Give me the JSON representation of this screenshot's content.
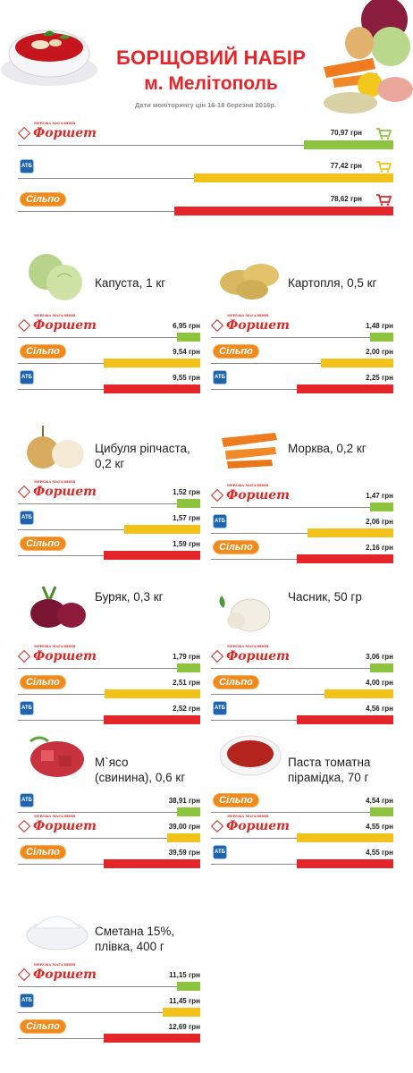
{
  "header": {
    "title": "БОРЩОВИЙ НАБІР",
    "city": "м. Мелітополь",
    "dates": "Дати моніторингу цін 16-18 березня 2016р."
  },
  "colors": {
    "green": "#8cc43f",
    "yellow": "#f2c21b",
    "red": "#e4262b",
    "brand": "#e4262b"
  },
  "stores": {
    "fora": {
      "name": "Форшет",
      "tagline": "МЕРЕЖА МАГАЗИНІВ",
      "icon": "fora-logo"
    },
    "atb": {
      "name": "АТБ",
      "icon": "atb-logo"
    },
    "silpo": {
      "name": "Сільпо",
      "icon": "silpo-logo"
    }
  },
  "chart_data": [
    {
      "type": "bar",
      "title": "БОРЩОВИЙ НАБІР",
      "categories": [
        "Форшет",
        "АТБ",
        "Сільпо"
      ],
      "values": [
        70.97,
        77.42,
        78.62
      ],
      "labels": [
        "70,97 грн",
        "77,42 грн",
        "78,62 грн"
      ],
      "colors": [
        "green",
        "yellow",
        "red"
      ],
      "icon": "basket-icon"
    },
    {
      "type": "bar",
      "title": "Капуста, 1 кг",
      "categories": [
        "Форшет",
        "Сільпо",
        "АТБ"
      ],
      "values": [
        6.95,
        9.54,
        9.55
      ],
      "labels": [
        "6,95 грн",
        "9,54 грн",
        "9,55 грн"
      ]
    },
    {
      "type": "bar",
      "title": "Картопля, 0,5 кг",
      "categories": [
        "Форшет",
        "Сільпо",
        "АТБ"
      ],
      "values": [
        1.48,
        2.0,
        2.25
      ],
      "labels": [
        "1,48 грн",
        "2,00 грн",
        "2,25 грн"
      ]
    },
    {
      "type": "bar",
      "title": "Цибуля ріпчаста, 0,2 кг",
      "categories": [
        "Форшет",
        "АТБ",
        "Сільпо"
      ],
      "values": [
        1.52,
        1.57,
        1.59
      ],
      "labels": [
        "1,52 грн",
        "1,57 грн",
        "1,59 грн"
      ]
    },
    {
      "type": "bar",
      "title": "Морква, 0,2 кг",
      "categories": [
        "Форшет",
        "АТБ",
        "Сільпо"
      ],
      "values": [
        1.47,
        2.06,
        2.16
      ],
      "labels": [
        "1,47 грн",
        "2,06 грн",
        "2,16 грн"
      ]
    },
    {
      "type": "bar",
      "title": "Буряк, 0,3 кг",
      "categories": [
        "Форшет",
        "Сільпо",
        "АТБ"
      ],
      "values": [
        1.79,
        2.51,
        2.52
      ],
      "labels": [
        "1,79 грн",
        "2,51 грн",
        "2,52 грн"
      ]
    },
    {
      "type": "bar",
      "title": "Часник, 50 гр",
      "categories": [
        "Форшет",
        "Сільпо",
        "АТБ"
      ],
      "values": [
        3.06,
        4.0,
        4.56
      ],
      "labels": [
        "3,06 грн",
        "4,00 грн",
        "4,56 грн"
      ]
    },
    {
      "type": "bar",
      "title": "М`ясо (свинина), 0,6 кг",
      "categories": [
        "АТБ",
        "Форшет",
        "Сільпо"
      ],
      "values": [
        38.91,
        39.0,
        39.59
      ],
      "labels": [
        "38,91 грн",
        "39,00 грн",
        "39,59 грн"
      ]
    },
    {
      "type": "bar",
      "title": "Паста томатна пірамідка, 70 г",
      "categories": [
        "Сільпо",
        "Форшет",
        "АТБ"
      ],
      "values": [
        4.54,
        4.55,
        4.55
      ],
      "labels": [
        "4,54 грн",
        "4,55 грн",
        "4,55 грн"
      ]
    },
    {
      "type": "bar",
      "title": "Сметана 15%, плівка, 400 г",
      "categories": [
        "Форшет",
        "АТБ",
        "Сільпо"
      ],
      "values": [
        11.15,
        11.45,
        12.69
      ],
      "labels": [
        "11,15 грн",
        "11,45 грн",
        "12,69 грн"
      ]
    }
  ],
  "products": [
    {
      "name_lines": [
        "Капуста, 1 кг"
      ],
      "icon": "cabbage-icon"
    },
    {
      "name_lines": [
        "Картопля, 0,5 кг"
      ],
      "icon": "potato-icon"
    },
    {
      "name_lines": [
        "Цибуля ріпчаста,",
        "0,2 кг"
      ],
      "icon": "onion-icon"
    },
    {
      "name_lines": [
        "Морква, 0,2 кг"
      ],
      "icon": "carrot-icon"
    },
    {
      "name_lines": [
        "Буряк, 0,3 кг"
      ],
      "icon": "beet-icon"
    },
    {
      "name_lines": [
        "Часник, 50 гр"
      ],
      "icon": "garlic-icon"
    },
    {
      "name_lines": [
        "М`ясо",
        "(свинина), 0,6 кг"
      ],
      "icon": "meat-icon"
    },
    {
      "name_lines": [
        "Паста томатна",
        "пірамідка, 70 г"
      ],
      "icon": "tomato-paste-icon"
    },
    {
      "name_lines": [
        "Сметана 15%,",
        "плівка, 400 г"
      ],
      "icon": "sour-cream-icon"
    }
  ]
}
